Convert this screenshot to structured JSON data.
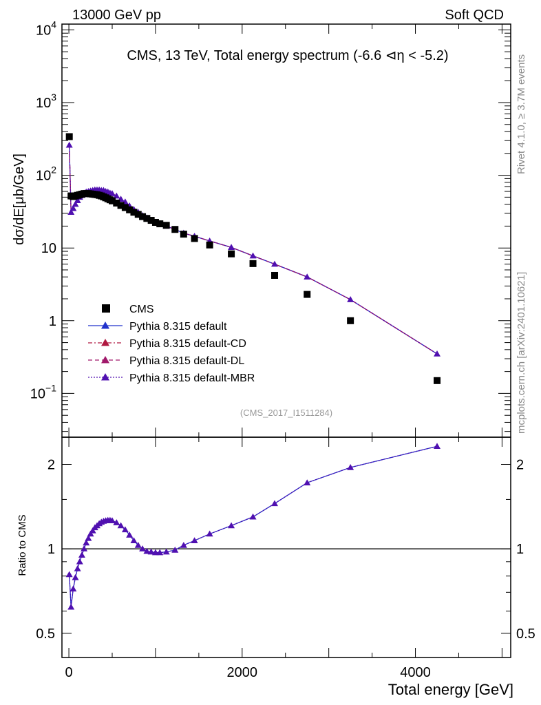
{
  "header": {
    "left": "13000 GeV pp",
    "right": "Soft QCD"
  },
  "side_labels": {
    "rivet": "Rivet 4.1.0, ≥ 3.7M events",
    "mcplots": "mcplots.cern.ch [arXiv:2401.10621]"
  },
  "colors": {
    "data": "#000000",
    "default": "#2233cc",
    "cd": "#b01840",
    "dl": "#a0186a",
    "mbr": "#5010b0",
    "watermark": "#999999"
  },
  "chart_data": [
    {
      "type": "scatter",
      "panel": "main",
      "title": "CMS, 13 TeV, Total energy spectrum (-6.6 ⊲η < -5.2)",
      "analysis_tag": "(CMS_2017_I1511284)",
      "ylabel": "dσ/dE[μb/GeV]",
      "xlabel": "",
      "yscale": "log",
      "xlim": [
        -80,
        5100
      ],
      "ylim": [
        0.025,
        12000
      ],
      "y_ticks": [
        {
          "value": 0.1,
          "base": "10",
          "exp": "−1"
        },
        {
          "value": 1,
          "base": "1",
          "exp": ""
        },
        {
          "value": 10,
          "base": "10",
          "exp": ""
        },
        {
          "value": 100,
          "base": "10",
          "exp": "2"
        },
        {
          "value": 1000,
          "base": "10",
          "exp": "3"
        },
        {
          "value": 10000,
          "base": "10",
          "exp": "4"
        }
      ],
      "legend": {
        "position": "bottom-left",
        "entries": [
          {
            "label": "CMS",
            "style": "square"
          },
          {
            "label": "Pythia 8.315 default",
            "style": "solid"
          },
          {
            "label": "Pythia 8.315 default-CD",
            "style": "dashdot"
          },
          {
            "label": "Pythia 8.315 default-DL",
            "style": "dashed"
          },
          {
            "label": "Pythia 8.315 default-MBR",
            "style": "dotted"
          }
        ]
      },
      "series": [
        {
          "name": "CMS",
          "x": [
            5,
            25,
            50,
            75,
            100,
            125,
            150,
            175,
            200,
            225,
            250,
            275,
            300,
            325,
            350,
            375,
            400,
            425,
            450,
            475,
            500,
            550,
            600,
            650,
            700,
            750,
            800,
            850,
            900,
            950,
            1000,
            1050,
            1125,
            1225,
            1325,
            1450,
            1625,
            1875,
            2125,
            2375,
            2750,
            3250,
            4250
          ],
          "y": [
            340,
            52,
            51,
            52,
            53,
            54,
            55,
            56,
            56,
            56,
            55.5,
            55,
            54.5,
            54,
            53,
            52,
            50.5,
            49,
            47.5,
            46,
            44.5,
            41.5,
            38.5,
            36,
            33.5,
            31,
            29,
            27,
            25.5,
            24,
            22.5,
            21.5,
            20.5,
            18,
            15.5,
            13.5,
            11,
            8.3,
            6.1,
            4.2,
            2.3,
            1.0,
            0.15
          ]
        },
        {
          "name": "Pythia 8.315 default",
          "x": [
            5,
            25,
            50,
            75,
            100,
            125,
            150,
            175,
            200,
            225,
            250,
            275,
            300,
            325,
            350,
            375,
            400,
            425,
            450,
            475,
            500,
            550,
            600,
            650,
            700,
            750,
            800,
            850,
            900,
            950,
            1000,
            1050,
            1125,
            1225,
            1325,
            1450,
            1625,
            1875,
            2125,
            2375,
            2750,
            3250,
            4250
          ],
          "y": [
            260,
            31,
            35,
            40,
            45,
            50,
            53,
            57,
            59,
            60,
            61,
            62,
            63,
            63,
            63,
            62,
            62,
            60,
            59,
            57,
            56,
            52,
            47,
            43,
            38,
            34,
            31,
            28,
            26,
            24,
            22,
            21,
            20,
            18,
            16,
            14.5,
            12.5,
            10.2,
            7.8,
            6.0,
            4.0,
            1.95,
            0.35
          ]
        }
      ]
    },
    {
      "type": "line",
      "panel": "ratio",
      "ylabel": "Ratio to CMS",
      "xlabel": "Total energy [GeV]",
      "yscale": "log",
      "xlim": [
        -80,
        5100
      ],
      "ylim": [
        0.41,
        2.5
      ],
      "x_ticks": [
        0,
        2000,
        4000
      ],
      "y_ticks": [
        0.5,
        1,
        2
      ],
      "reference_line": 1,
      "series": [
        {
          "name": "Pythia 8.315 / CMS",
          "x": [
            5,
            25,
            50,
            75,
            100,
            125,
            150,
            175,
            200,
            225,
            250,
            275,
            300,
            325,
            350,
            375,
            400,
            425,
            450,
            475,
            500,
            550,
            600,
            650,
            700,
            750,
            800,
            850,
            900,
            950,
            1000,
            1050,
            1125,
            1225,
            1325,
            1450,
            1625,
            1875,
            2125,
            2375,
            2750,
            3250,
            4250
          ],
          "y": [
            0.81,
            0.62,
            0.72,
            0.79,
            0.85,
            0.9,
            0.95,
            1.0,
            1.05,
            1.09,
            1.13,
            1.16,
            1.19,
            1.21,
            1.23,
            1.245,
            1.255,
            1.26,
            1.265,
            1.265,
            1.26,
            1.24,
            1.21,
            1.17,
            1.12,
            1.07,
            1.03,
            1.0,
            0.98,
            0.975,
            0.97,
            0.97,
            0.975,
            0.99,
            1.03,
            1.07,
            1.13,
            1.21,
            1.3,
            1.45,
            1.72,
            1.95,
            2.32
          ]
        }
      ]
    }
  ]
}
